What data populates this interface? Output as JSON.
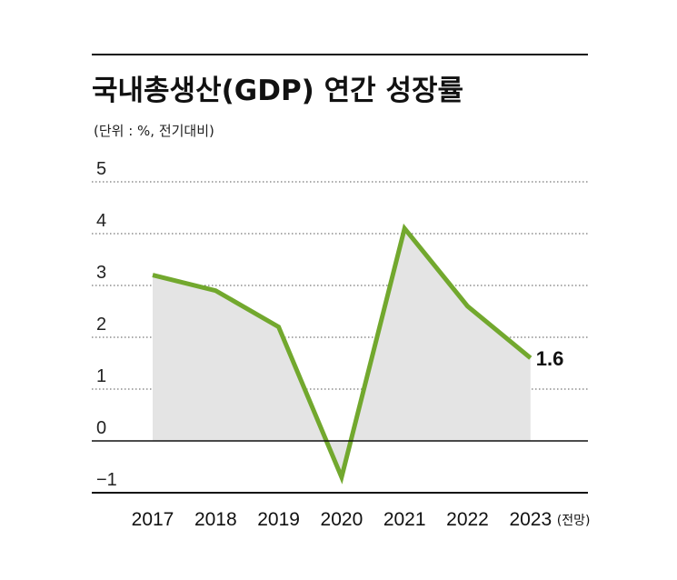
{
  "chart_data": {
    "type": "area",
    "title": "국내총생산(GDP) 연간 성장률",
    "subtitle": "(단위 : %, 전기대비)",
    "categories": [
      "2017",
      "2018",
      "2019",
      "2020",
      "2021",
      "2022",
      "2023"
    ],
    "category_note": "(전망)",
    "values": [
      3.2,
      2.9,
      2.2,
      -0.7,
      4.1,
      2.6,
      1.6
    ],
    "y_ticks": [
      "5",
      "4",
      "3",
      "2",
      "1",
      "0",
      "−1"
    ],
    "y_tick_values": [
      5,
      4,
      3,
      2,
      1,
      0,
      -1
    ],
    "ylim": [
      -1,
      5
    ],
    "data_label": "1.6",
    "grid": true,
    "line_color": "#72a82e",
    "fill_color": "#e4e4e4"
  }
}
